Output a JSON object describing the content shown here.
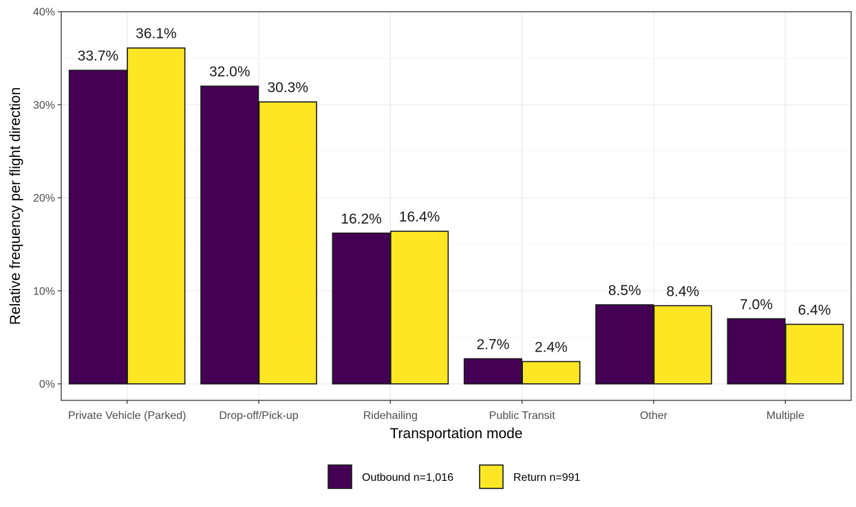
{
  "chart_data": {
    "type": "bar",
    "title": "",
    "xlabel": "Transportation mode",
    "ylabel": "Relative frequency per flight direction",
    "categories": [
      "Private Vehicle (Parked)",
      "Drop-off/Pick-up",
      "Ridehailing",
      "Public Transit",
      "Other",
      "Multiple"
    ],
    "series": [
      {
        "name": "Outbound n=1,016",
        "color": "#440154",
        "values": [
          33.7,
          32.0,
          16.2,
          2.7,
          8.5,
          7.0
        ],
        "labels": [
          "33.7%",
          "32.0%",
          "16.2%",
          "2.7%",
          "8.5%",
          "7.0%"
        ]
      },
      {
        "name": "Return n=991",
        "color": "#FDE725",
        "values": [
          36.1,
          30.3,
          16.4,
          2.4,
          8.4,
          6.4
        ],
        "labels": [
          "36.1%",
          "30.3%",
          "16.4%",
          "2.4%",
          "8.4%",
          "6.4%"
        ]
      }
    ],
    "ylim": [
      0,
      40
    ],
    "yticks": [
      0,
      10,
      20,
      30,
      40
    ],
    "ytick_labels": [
      "0%",
      "10%",
      "20%",
      "30%",
      "40%"
    ],
    "grid": true,
    "legend_position": "bottom"
  }
}
